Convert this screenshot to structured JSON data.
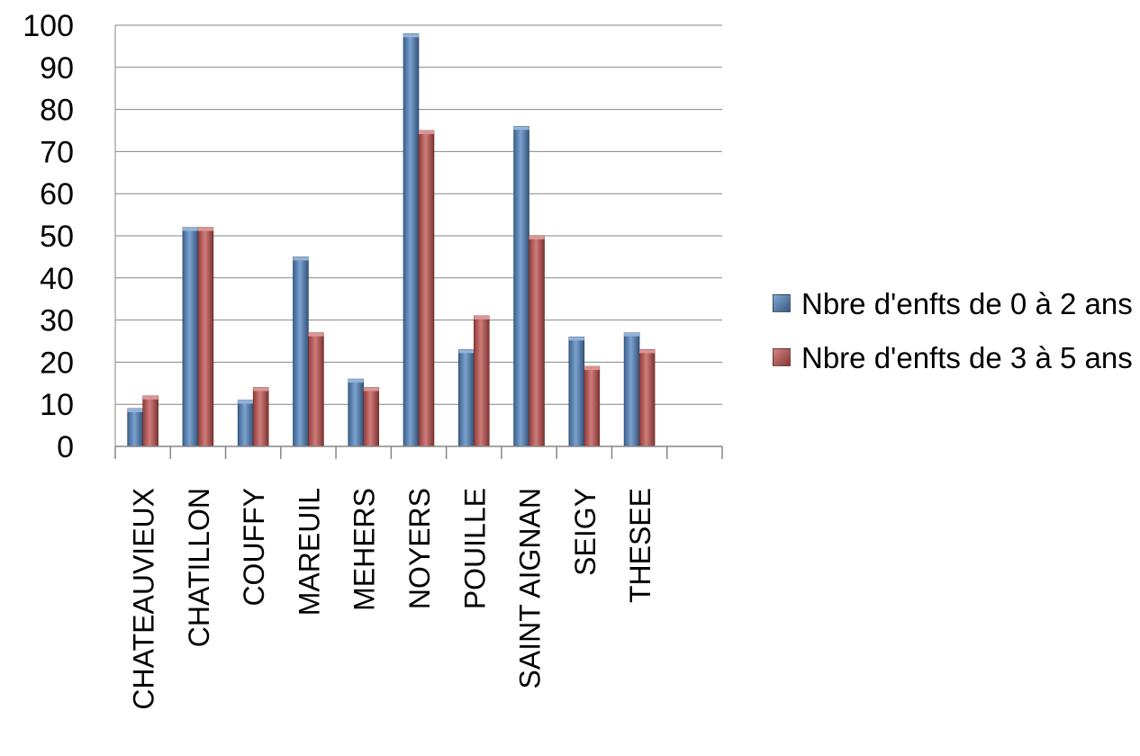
{
  "chart_data": {
    "type": "bar",
    "title": "",
    "xlabel": "",
    "ylabel": "",
    "categories": [
      "CHATEAUVIEUX",
      "CHATILLON",
      "COUFFY",
      "MAREUIL",
      "MEHERS",
      "NOYERS",
      "POUILLE",
      "SAINT AIGNAN",
      "SEIGY",
      "THESEE"
    ],
    "series": [
      {
        "name": "Nbre d'enfts de 0 à 2 ans",
        "color": "#4f81bd",
        "values": [
          9,
          52,
          11,
          45,
          16,
          98,
          23,
          76,
          26,
          27
        ]
      },
      {
        "name": "Nbre d'enfts de 3 à 5 ans",
        "color": "#c0504d",
        "values": [
          12,
          52,
          14,
          27,
          14,
          75,
          31,
          50,
          19,
          23
        ]
      }
    ],
    "ylim": [
      0,
      100
    ],
    "y_ticks": [
      "0",
      "10",
      "20",
      "30",
      "40",
      "50",
      "60",
      "70",
      "80",
      "90",
      "100"
    ],
    "category_slots": 11,
    "grid": true,
    "legend_position": "right"
  }
}
